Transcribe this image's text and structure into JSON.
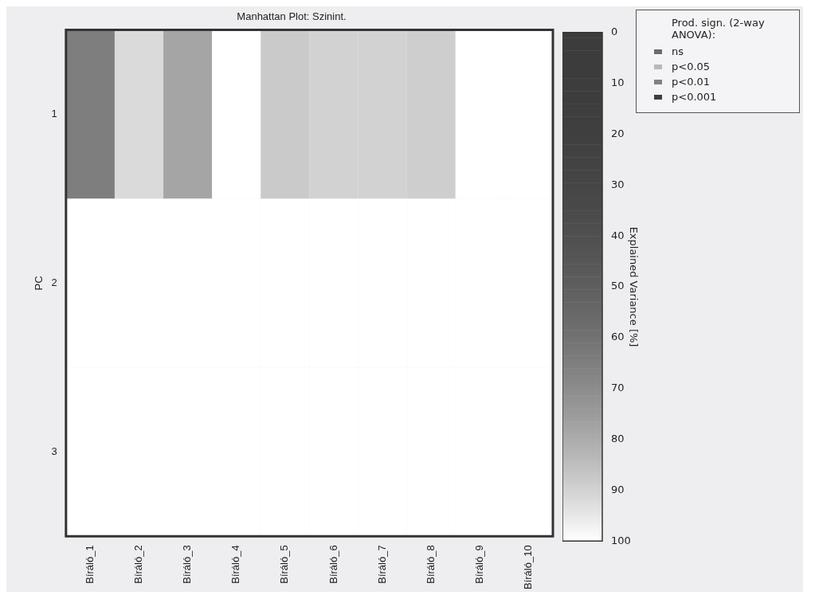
{
  "chart_data": {
    "type": "heatmap",
    "title": "Manhattan Plot: Szinint.",
    "ylabel": "PC",
    "clabel": "Explained Variance [%]",
    "categories": [
      "Bíráló_1",
      "Bíráló_2",
      "Bíráló_3",
      "Bíráló_4",
      "Bíráló_5",
      "Bíráló_6",
      "Bíráló_7",
      "Bíráló_8",
      "Bíráló_9",
      "Bíráló_10"
    ],
    "y_categories": [
      "1",
      "2",
      "3"
    ],
    "cells": [
      [
        65,
        92,
        78,
        100,
        88,
        90,
        90,
        89,
        100,
        100
      ],
      [
        100,
        100,
        100,
        100,
        100,
        100,
        100,
        100,
        100,
        100
      ],
      [
        100,
        100,
        100,
        100,
        100,
        100,
        100,
        100,
        100,
        100
      ]
    ],
    "clim": [
      0,
      100
    ],
    "cticks": [
      0,
      10,
      20,
      30,
      40,
      50,
      60,
      70,
      80,
      90,
      100
    ],
    "legend_title": "Prod. sign. (2-way ANOVA):",
    "annotations": [
      "ns",
      "p<0.05",
      "p<0.01",
      "p<0.001"
    ]
  }
}
